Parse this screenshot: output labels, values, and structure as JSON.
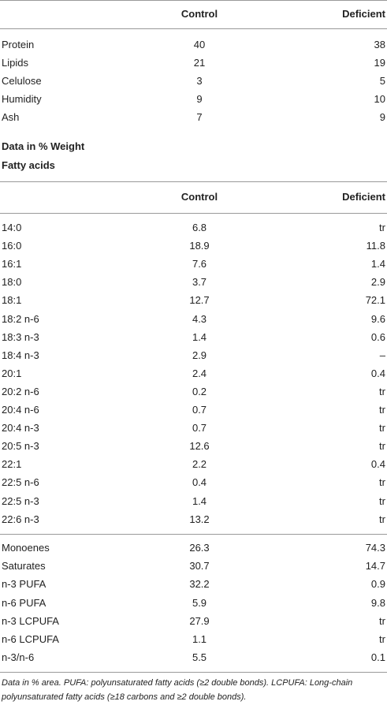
{
  "table1": {
    "header": [
      "Control",
      "Deficient"
    ],
    "rows": [
      {
        "label": "Protein",
        "values": [
          40,
          38
        ]
      },
      {
        "label": "Lipids",
        "values": [
          21,
          19
        ]
      },
      {
        "label": "Celulose",
        "values": [
          3,
          5
        ]
      },
      {
        "label": "Humidity",
        "values": [
          9,
          10
        ]
      },
      {
        "label": "Ash",
        "values": [
          7,
          9
        ]
      }
    ]
  },
  "notes": [
    "Data in % Weight",
    "Fatty acids"
  ],
  "table2": {
    "header": [
      "Control",
      "Deficient"
    ],
    "rows": [
      {
        "label": "14:0",
        "values": [
          6.8,
          "tr"
        ]
      },
      {
        "label": "16:0",
        "values": [
          18.9,
          11.8
        ]
      },
      {
        "label": "16:1",
        "values": [
          7.6,
          1.4
        ]
      },
      {
        "label": "18:0",
        "values": [
          3.7,
          2.9
        ]
      },
      {
        "label": "18:1",
        "values": [
          12.7,
          72.1
        ]
      },
      {
        "label": "18:2 n-6",
        "values": [
          4.3,
          9.6
        ]
      },
      {
        "label": "18:3 n-3",
        "values": [
          1.4,
          0.6
        ]
      },
      {
        "label": "18:4 n-3",
        "values": [
          2.9,
          "–"
        ]
      },
      {
        "label": "20:1",
        "values": [
          2.4,
          0.4
        ]
      },
      {
        "label": "20:2 n-6",
        "values": [
          0.2,
          "tr"
        ]
      },
      {
        "label": "20:4 n-6",
        "values": [
          0.7,
          "tr"
        ]
      },
      {
        "label": "20:4 n-3",
        "values": [
          0.7,
          "tr"
        ]
      },
      {
        "label": "20:5 n-3",
        "values": [
          12.6,
          "tr"
        ]
      },
      {
        "label": "22:1",
        "values": [
          2.2,
          0.4
        ]
      },
      {
        "label": "22:5 n-6",
        "values": [
          0.4,
          "tr"
        ]
      },
      {
        "label": "22:5 n-3",
        "values": [
          1.4,
          "tr"
        ]
      },
      {
        "label": "22:6 n-3",
        "values": [
          13.2,
          "tr"
        ]
      }
    ],
    "summary_rows": [
      {
        "label": "Monoenes",
        "values": [
          26.3,
          74.3
        ]
      },
      {
        "label": "Saturates",
        "values": [
          30.7,
          14.7
        ]
      },
      {
        "label": "n-3 PUFA",
        "values": [
          32.2,
          0.9
        ]
      },
      {
        "label": "n-6 PUFA",
        "values": [
          5.9,
          9.8
        ]
      },
      {
        "label": "n-3 LCPUFA",
        "values": [
          27.9,
          "tr"
        ]
      },
      {
        "label": "n-6 LCPUFA",
        "values": [
          1.1,
          "tr"
        ]
      },
      {
        "label": "n-3/n-6",
        "values": [
          5.5,
          0.1
        ]
      }
    ]
  },
  "footnote": "Data in % area. PUFA: polyunsaturated fatty acids (≥2 double bonds). LCPUFA: Long-chain polyunsaturated fatty acids (≥18 carbons and ≥2 double bonds)."
}
